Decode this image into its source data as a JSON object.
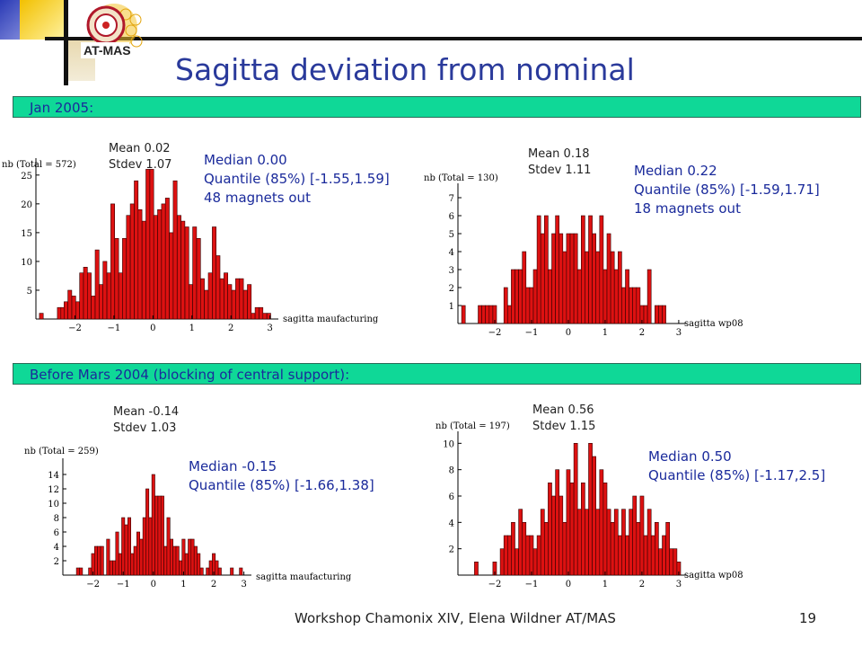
{
  "title": "Sagitta deviation from nominal",
  "logo": {
    "text": "AT-MAS",
    "colors": {
      "gold": "#f4c430",
      "red": "#d62b1f"
    }
  },
  "sections": [
    {
      "label": "Jan 2005:"
    },
    {
      "label": "Before Mars 2004 (blocking of central support):"
    }
  ],
  "colors": {
    "accent": "#2a3a9b",
    "band": "#0fd897",
    "bar": "#dd1111"
  },
  "footer": {
    "text": "Workshop Chamonix XIV, Elena Wildner AT/MAS",
    "page": "19"
  },
  "chart_data": [
    {
      "type": "bar",
      "ylabel": "nb (Total = 572)",
      "xlabel": "sagitta maufacturing",
      "xticks": [
        "-2",
        "-1",
        "0",
        "1",
        "2",
        "3"
      ],
      "yticks": [
        "5",
        "10",
        "15",
        "20",
        "25"
      ],
      "xlim": [
        -3,
        3.1
      ],
      "ylim": [
        0,
        27
      ],
      "stats": {
        "mean": "Mean 0.02",
        "stdev": "Stdev 1.07"
      },
      "info": [
        "Median 0.00",
        "Quantile (85%) [-1.55,1.59]",
        "48 magnets out"
      ],
      "x": [
        -2.86,
        -2.4,
        -2.31,
        -2.23,
        -2.13,
        -2.03,
        -1.93,
        -1.83,
        -1.73,
        -1.63,
        -1.53,
        -1.43,
        -1.33,
        -1.23,
        -1.13,
        -1.03,
        -0.93,
        -0.83,
        -0.73,
        -0.63,
        -0.53,
        -0.43,
        -0.33,
        -0.23,
        -0.13,
        -0.03,
        0.07,
        0.17,
        0.27,
        0.37,
        0.47,
        0.57,
        0.67,
        0.77,
        0.87,
        0.97,
        1.07,
        1.17,
        1.27,
        1.37,
        1.47,
        1.57,
        1.67,
        1.77,
        1.87,
        1.97,
        2.07,
        2.17,
        2.27,
        2.37,
        2.47,
        2.57,
        2.67,
        2.77,
        2.87,
        2.97
      ],
      "values": [
        1,
        2,
        2,
        3,
        5,
        4,
        3,
        8,
        9,
        8,
        4,
        12,
        6,
        10,
        8,
        20,
        14,
        8,
        14,
        18,
        20,
        24,
        19,
        17,
        26,
        26,
        18,
        19,
        20,
        21,
        15,
        24,
        18,
        17,
        16,
        6,
        16,
        14,
        7,
        5,
        8,
        16,
        11,
        7,
        8,
        6,
        5,
        7,
        7,
        5,
        6,
        1,
        2,
        2,
        1,
        1
      ]
    },
    {
      "type": "bar",
      "ylabel": "nb (Total = 130)",
      "xlabel": "sagitta wp08",
      "xticks": [
        "-2",
        "-1",
        "0",
        "1",
        "2",
        "3"
      ],
      "yticks": [
        "1",
        "2",
        "3",
        "4",
        "5",
        "6",
        "7"
      ],
      "xlim": [
        -3,
        3.1
      ],
      "ylim": [
        0,
        7.5
      ],
      "stats": {
        "mean": "Mean 0.18",
        "stdev": "Stdev 1.11"
      },
      "info": [
        "Median 0.22",
        "Quantile (85%) [-1.59,1.71]",
        "18 magnets out"
      ],
      "x": [
        -2.85,
        -2.4,
        -2.3,
        -2.2,
        -2.1,
        -2.0,
        -1.7,
        -1.6,
        -1.5,
        -1.4,
        -1.3,
        -1.2,
        -1.1,
        -1.0,
        -0.9,
        -0.8,
        -0.7,
        -0.6,
        -0.5,
        -0.4,
        -0.3,
        -0.2,
        -0.1,
        0.0,
        0.1,
        0.2,
        0.3,
        0.4,
        0.5,
        0.6,
        0.7,
        0.8,
        0.9,
        1.0,
        1.1,
        1.2,
        1.3,
        1.4,
        1.5,
        1.6,
        1.7,
        1.8,
        1.9,
        2.0,
        2.1,
        2.2,
        2.4,
        2.5,
        2.6
      ],
      "values": [
        1,
        1,
        1,
        1,
        1,
        1,
        2,
        1,
        3,
        3,
        3,
        4,
        2,
        2,
        3,
        6,
        5,
        6,
        3,
        5,
        6,
        5,
        4,
        5,
        5,
        5,
        3,
        6,
        4,
        6,
        5,
        4,
        6,
        3,
        5,
        4,
        3,
        4,
        2,
        3,
        2,
        2,
        2,
        1,
        1,
        3,
        1,
        1,
        1
      ]
    },
    {
      "type": "bar",
      "ylabel": "nb (Total = 259)",
      "xlabel": "sagitta maufacturing",
      "xticks": [
        "-2",
        "-1",
        "0",
        "1",
        "2",
        "3"
      ],
      "yticks": [
        "2",
        "4",
        "6",
        "8",
        "10",
        "12",
        "14"
      ],
      "xlim": [
        -3,
        3.1
      ],
      "ylim": [
        0,
        15.5
      ],
      "stats": {
        "mean": "Mean -0.14",
        "stdev": "Stdev 1.03"
      },
      "info": [
        "Median -0.15",
        "Quantile (85%) [-1.66,1.38]"
      ],
      "x": [
        -2.5,
        -2.4,
        -2.1,
        -2.0,
        -1.9,
        -1.8,
        -1.7,
        -1.5,
        -1.4,
        -1.3,
        -1.2,
        -1.1,
        -1.0,
        -0.9,
        -0.8,
        -0.7,
        -0.6,
        -0.5,
        -0.4,
        -0.3,
        -0.2,
        -0.1,
        0.0,
        0.1,
        0.2,
        0.3,
        0.4,
        0.5,
        0.6,
        0.7,
        0.8,
        0.9,
        1.0,
        1.1,
        1.2,
        1.3,
        1.4,
        1.5,
        1.6,
        1.8,
        1.9,
        2.0,
        2.1,
        2.2,
        2.6,
        2.9
      ],
      "values": [
        1,
        1,
        1,
        3,
        4,
        4,
        4,
        5,
        2,
        2,
        6,
        3,
        8,
        7,
        8,
        3,
        4,
        6,
        5,
        8,
        12,
        8,
        14,
        11,
        11,
        11,
        4,
        8,
        5,
        4,
        4,
        2,
        5,
        3,
        5,
        5,
        4,
        3,
        1,
        1,
        2,
        3,
        2,
        1,
        1,
        1
      ]
    },
    {
      "type": "bar",
      "ylabel": "nb (Total = 197)",
      "xlabel": "sagitta wp08",
      "xticks": [
        "-2",
        "-1",
        "0",
        "1",
        "2",
        "3"
      ],
      "yticks": [
        "2",
        "4",
        "6",
        "8",
        "10"
      ],
      "xlim": [
        -3,
        3.1
      ],
      "ylim": [
        0,
        10.5
      ],
      "stats": {
        "mean": "Mean 0.56",
        "stdev": "Stdev 1.15"
      },
      "info": [
        "Median 0.50",
        "Quantile (85%) [-1.17,2.5]"
      ],
      "x": [
        -2.5,
        -2.0,
        -1.8,
        -1.7,
        -1.6,
        -1.5,
        -1.4,
        -1.3,
        -1.2,
        -1.1,
        -1.0,
        -0.9,
        -0.8,
        -0.7,
        -0.6,
        -0.5,
        -0.4,
        -0.3,
        -0.2,
        -0.1,
        0.0,
        0.1,
        0.2,
        0.3,
        0.4,
        0.5,
        0.6,
        0.7,
        0.8,
        0.9,
        1.0,
        1.1,
        1.2,
        1.3,
        1.4,
        1.5,
        1.6,
        1.7,
        1.8,
        1.9,
        2.0,
        2.1,
        2.2,
        2.3,
        2.4,
        2.5,
        2.6,
        2.7,
        2.8,
        2.9,
        3.0
      ],
      "values": [
        1,
        1,
        2,
        3,
        3,
        4,
        2,
        5,
        4,
        3,
        3,
        2,
        3,
        5,
        4,
        7,
        6,
        8,
        6,
        4,
        8,
        7,
        10,
        5,
        7,
        5,
        10,
        9,
        5,
        8,
        7,
        5,
        4,
        5,
        3,
        5,
        3,
        5,
        6,
        4,
        6,
        3,
        5,
        3,
        4,
        2,
        3,
        4,
        2,
        2,
        1
      ]
    }
  ]
}
